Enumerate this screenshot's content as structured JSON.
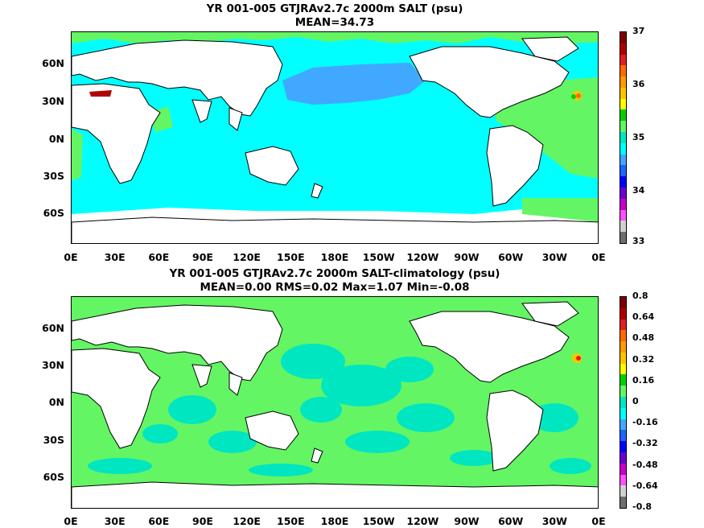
{
  "panels": [
    {
      "title_line1": "YR 001-005 GTJRAv2.7c 2000m SALT (psu)",
      "title_line2": "MEAN=34.73",
      "colorbar_labels": [
        "37",
        "36",
        "35",
        "34",
        "33"
      ],
      "colorbar_colors": [
        "#7f0000",
        "#b00000",
        "#e02020",
        "#ff6a00",
        "#ff9a00",
        "#ffc400",
        "#ffff00",
        "#00d000",
        "#64f564",
        "#00e6c0",
        "#00ffff",
        "#40a8ff",
        "#1e64ff",
        "#0000ff",
        "#6a00d0",
        "#c800c8",
        "#ff50ff",
        "#d0d0d0",
        "#6e6e6e"
      ]
    },
    {
      "title_line1": "YR 001-005 GTJRAv2.7c 2000m SALT-climatology (psu)",
      "title_line2": "MEAN=0.00   RMS=0.02   Max=1.07   Min=-0.08",
      "colorbar_labels": [
        "0.8",
        "0.64",
        "0.48",
        "0.32",
        "0.16",
        "0",
        "-0.16",
        "-0.32",
        "-0.48",
        "-0.64",
        "-0.8"
      ],
      "colorbar_colors": [
        "#7f0000",
        "#b00000",
        "#e02020",
        "#ff6a00",
        "#ff9a00",
        "#ffc400",
        "#ffff00",
        "#00d000",
        "#64f564",
        "#00e6c0",
        "#00ffff",
        "#40a8ff",
        "#1e64ff",
        "#0000ff",
        "#6a00d0",
        "#c800c8",
        "#ff50ff",
        "#d0d0d0",
        "#6e6e6e"
      ]
    }
  ],
  "lat_labels": [
    "60N",
    "30N",
    "0N",
    "30S",
    "60S"
  ],
  "lon_labels": [
    "0E",
    "30E",
    "60E",
    "90E",
    "120E",
    "150E",
    "180E",
    "150W",
    "120W",
    "90W",
    "60W",
    "30W",
    "0E"
  ],
  "colors": {
    "panel1_ocean": "#00ffff",
    "panel1_north_pacific": "#40a8ff",
    "panel1_atlantic": "#64f564",
    "panel2_ocean": "#64f564",
    "panel2_patches": "#00e6c0",
    "land": "#ffffff"
  }
}
